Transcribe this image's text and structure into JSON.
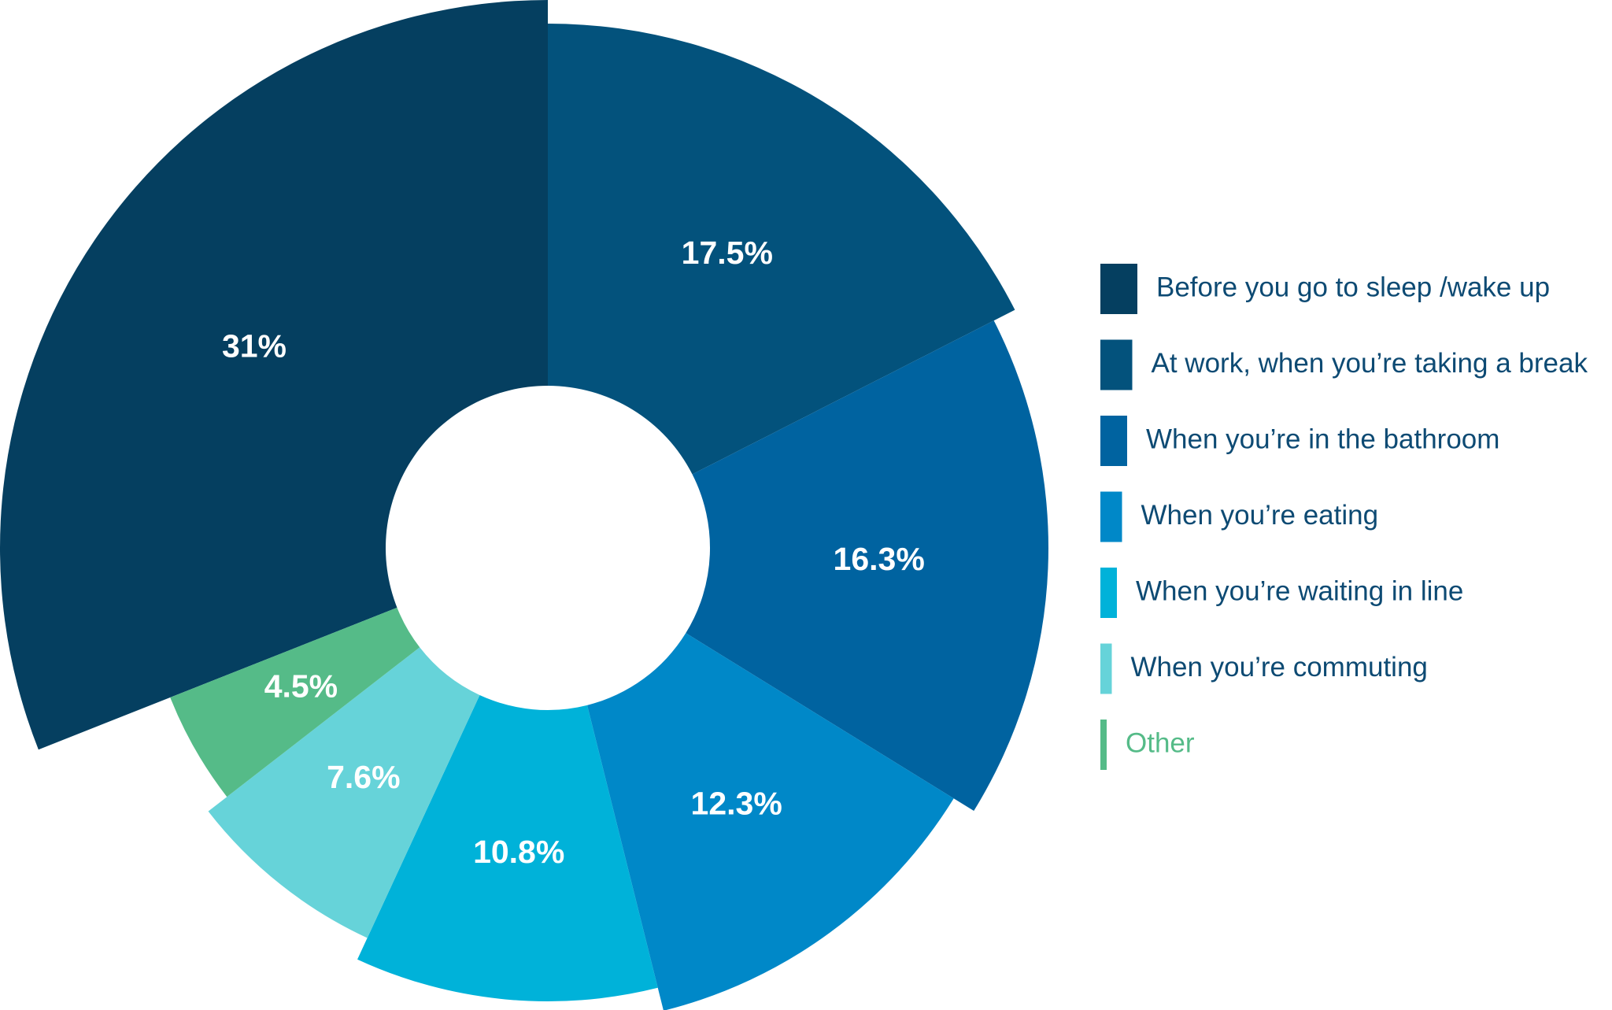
{
  "chart_data": {
    "type": "donut",
    "categories": [
      "Before you go to sleep /wake up",
      "At work, when you’re taking a break",
      "When you’re in the bathroom",
      "When you’re eating",
      "When you’re waiting in line",
      "When you’re commuting",
      "Other"
    ],
    "values": [
      31,
      17.5,
      16.3,
      12.3,
      10.8,
      7.6,
      4.5
    ],
    "value_labels": [
      "31%",
      "17.5%",
      "16.3%",
      "12.3%",
      "10.8%",
      "7.6%",
      "4.5%"
    ],
    "colors": [
      "#053f60",
      "#03527c",
      "#0063a0",
      "#0088c8",
      "#00b2d9",
      "#66d3d9",
      "#55bb88"
    ]
  }
}
